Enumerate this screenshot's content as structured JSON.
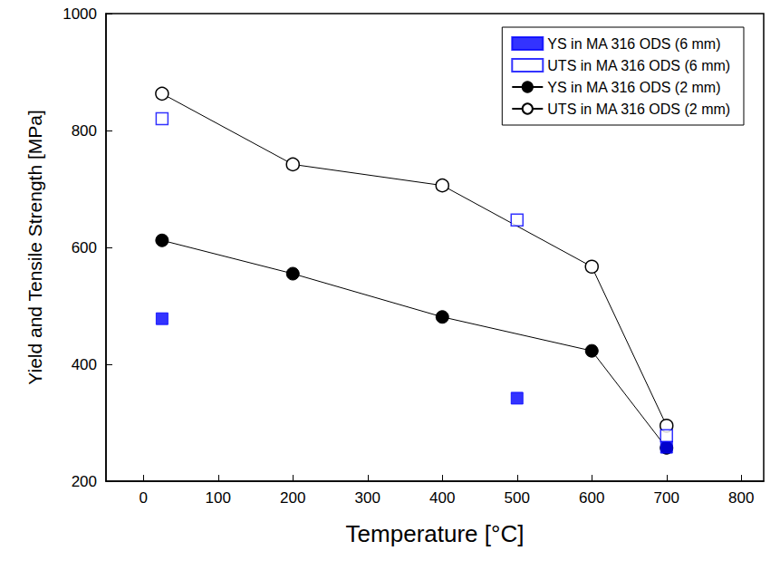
{
  "chart_data": {
    "type": "line",
    "x_label": "Temperature [°C]",
    "y_label": "Yield and Tensile Strength [MPa]",
    "xlim": [
      -50,
      830
    ],
    "xticks": [
      0,
      100,
      200,
      300,
      400,
      500,
      600,
      700,
      800
    ],
    "ylim": [
      200,
      1000
    ],
    "yticks": [
      200,
      400,
      600,
      800,
      1000
    ],
    "grid": false,
    "legend": "upper right",
    "series": [
      {
        "name": "YS in MA 316 ODS (6 mm)",
        "type": "scatter",
        "marker": "square",
        "color": "#0000ff",
        "x": [
          25,
          500,
          700
        ],
        "values": [
          478,
          342,
          258
        ]
      },
      {
        "name": "UTS in MA 316 ODS (6 mm)",
        "type": "scatter",
        "marker": "open-square",
        "color": "#0000ff",
        "x": [
          25,
          500,
          700
        ],
        "values": [
          820,
          647,
          278
        ]
      },
      {
        "name": "YS in MA 316 ODS (2 mm)",
        "type": "line",
        "marker": "circle",
        "color": "#000000",
        "x": [
          25,
          200,
          400,
          600,
          700
        ],
        "values": [
          612,
          555,
          481,
          423,
          257
        ]
      },
      {
        "name": "UTS in MA 316 ODS (2 mm)",
        "type": "line",
        "marker": "open-circle",
        "color": "#000000",
        "x": [
          25,
          200,
          400,
          600,
          700
        ],
        "values": [
          863,
          742,
          706,
          567,
          295
        ]
      }
    ]
  }
}
